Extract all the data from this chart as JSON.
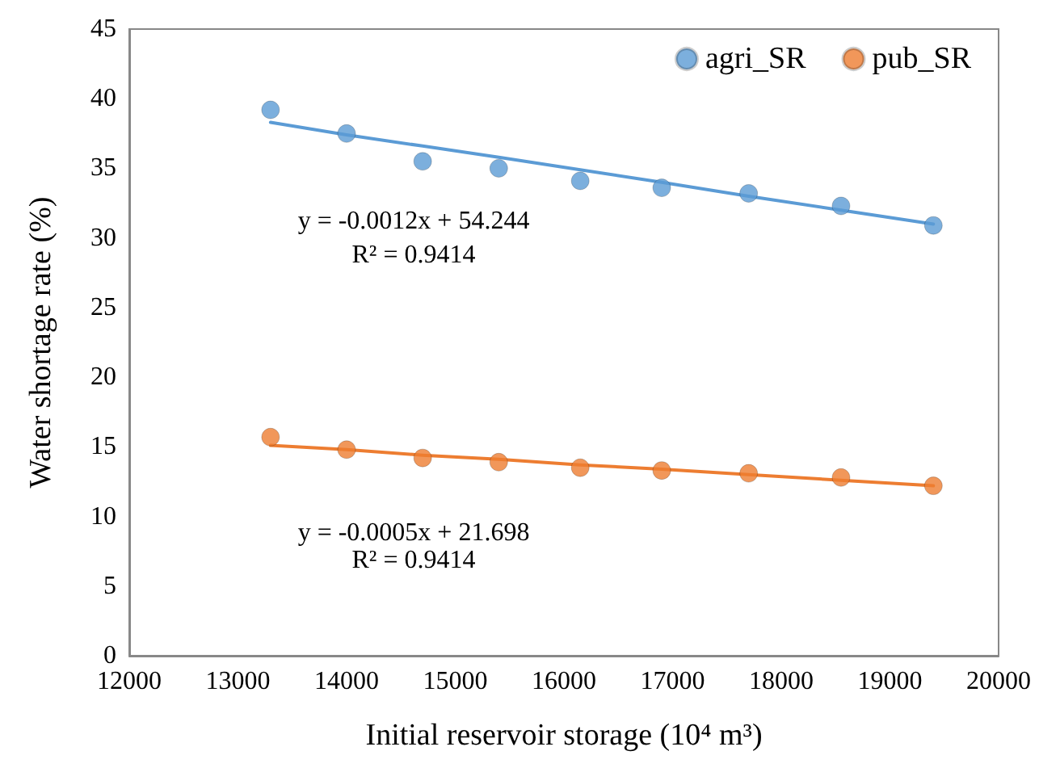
{
  "chart_data": {
    "type": "scatter",
    "xlabel": "Initial reservoir storage (10⁴ m³)",
    "ylabel": "Water shortage rate (%)",
    "x": [
      13300,
      14000,
      14700,
      15400,
      16150,
      16900,
      17700,
      18550,
      19400
    ],
    "series": [
      {
        "name": "agri_SR",
        "color": "#5b9bd5",
        "values": [
          39.2,
          37.5,
          35.5,
          35.0,
          34.1,
          33.6,
          33.2,
          32.3,
          30.9
        ]
      },
      {
        "name": "pub_SR",
        "color": "#ed7d31",
        "values": [
          15.7,
          14.8,
          14.2,
          13.9,
          13.5,
          13.3,
          13.1,
          12.8,
          12.2
        ]
      },
      {
        "type": "line",
        "color": "#5b9bd5",
        "marker": "none",
        "values": [
          38.3,
          37.4,
          36.6,
          35.8,
          34.9,
          34.0,
          33.0,
          32.0,
          31.0
        ]
      },
      {
        "type": "line",
        "color": "#ed7d31",
        "marker": "none",
        "values": [
          15.1,
          14.8,
          14.4,
          14.1,
          13.7,
          13.4,
          13.0,
          12.6,
          12.2
        ]
      }
    ],
    "xlim": [
      12000,
      20000
    ],
    "xticks": [
      {
        "value": 12000,
        "label": "12000"
      },
      {
        "value": 13000,
        "label": "13000"
      },
      {
        "value": 14000,
        "label": "14000"
      },
      {
        "value": 15000,
        "label": "15000"
      },
      {
        "value": 16000,
        "label": "16000"
      },
      {
        "value": 17000,
        "label": "17000"
      },
      {
        "value": 18000,
        "label": "18000"
      },
      {
        "value": 19000,
        "label": "19000"
      },
      {
        "value": 20000,
        "label": "20000"
      }
    ],
    "ylim": [
      0,
      45
    ],
    "yticks": [
      0,
      5,
      10,
      15,
      20,
      25,
      30,
      35,
      40,
      45
    ],
    "annotations": [
      "y = -0.0012x + 54.244",
      "R² = 0.9414",
      "y = -0.0005x + 21.698",
      "R² = 0.9414"
    ],
    "grid": false,
    "legend": "top right",
    "marker": "circle"
  }
}
